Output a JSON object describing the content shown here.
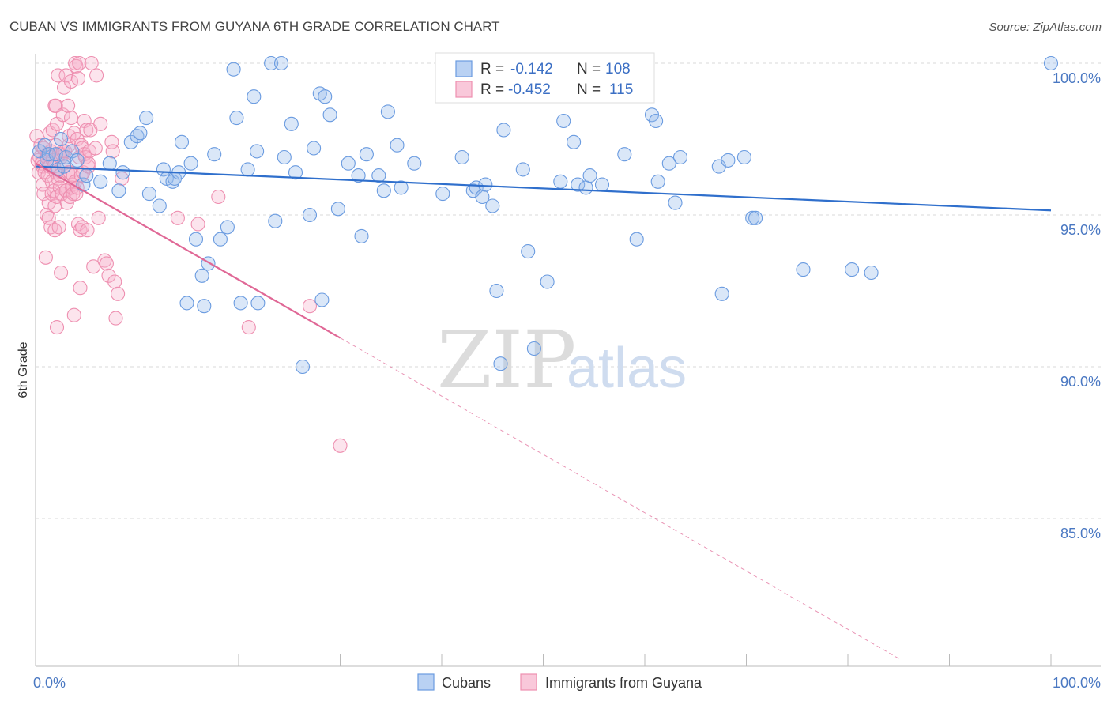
{
  "title": "CUBAN VS IMMIGRANTS FROM GUYANA 6TH GRADE CORRELATION CHART",
  "source": "Source: ZipAtlas.com",
  "watermark": {
    "zip": "ZIP",
    "atlas": "atlas"
  },
  "legend_top": {
    "r_label": "R =",
    "n_label": "N =",
    "rows": [
      {
        "r": "-0.142",
        "n": "108"
      },
      {
        "r": "-0.452",
        "n": "115"
      }
    ]
  },
  "legend_bottom": [
    "Cubans",
    "Immigrants from Guyana"
  ],
  "chart_data": {
    "type": "scatter",
    "title": "CUBAN VS IMMIGRANTS FROM GUYANA 6TH GRADE CORRELATION CHART",
    "xlabel": "",
    "ylabel": "6th Grade",
    "xlim": [
      0,
      100
    ],
    "ylim": [
      80.3,
      100.8
    ],
    "x_ticks": [
      "0.0%",
      "100.0%"
    ],
    "y_ticks": [
      {
        "value": 100,
        "label": "100.0%"
      },
      {
        "value": 95,
        "label": "95.0%"
      },
      {
        "value": 90,
        "label": "90.0%"
      },
      {
        "value": 85,
        "label": "85.0%"
      }
    ],
    "grid": true,
    "legend_position": "top-center",
    "colors": {
      "cubans": "#6a9be0",
      "guyana": "#ee8fb0",
      "cubans_line": "#2f6fcc",
      "guyana_line": "#e06896"
    },
    "series": [
      {
        "name": "Cubans",
        "r": -0.142,
        "n": 108,
        "trend": {
          "x": [
            0,
            100
          ],
          "y": [
            96.6,
            95.15
          ]
        },
        "points": [
          [
            0.4,
            97.1
          ],
          [
            0.9,
            97.3
          ],
          [
            1.1,
            96.8
          ],
          [
            1.3,
            97.0
          ],
          [
            2.0,
            97.0
          ],
          [
            2.2,
            96.5
          ],
          [
            2.5,
            97.5
          ],
          [
            2.8,
            96.6
          ],
          [
            3.0,
            96.9
          ],
          [
            3.6,
            97.1
          ],
          [
            4.1,
            96.8
          ],
          [
            4.7,
            96.0
          ],
          [
            5.0,
            96.3
          ],
          [
            6.4,
            96.1
          ],
          [
            7.3,
            96.7
          ],
          [
            8.2,
            95.8
          ],
          [
            8.6,
            96.4
          ],
          [
            9.4,
            97.4
          ],
          [
            10.0,
            97.6
          ],
          [
            10.3,
            97.7
          ],
          [
            10.9,
            98.2
          ],
          [
            11.2,
            95.7
          ],
          [
            12.2,
            95.3
          ],
          [
            12.6,
            96.5
          ],
          [
            12.9,
            96.2
          ],
          [
            13.5,
            96.1
          ],
          [
            13.7,
            96.2
          ],
          [
            14.1,
            96.4
          ],
          [
            14.4,
            97.4
          ],
          [
            14.9,
            92.1
          ],
          [
            15.3,
            96.7
          ],
          [
            15.8,
            94.2
          ],
          [
            16.4,
            93.0
          ],
          [
            16.6,
            92.0
          ],
          [
            17.0,
            93.4
          ],
          [
            17.6,
            97.0
          ],
          [
            18.2,
            94.2
          ],
          [
            18.9,
            94.6
          ],
          [
            19.5,
            99.8
          ],
          [
            19.8,
            98.2
          ],
          [
            20.2,
            92.1
          ],
          [
            20.9,
            96.5
          ],
          [
            21.5,
            98.9
          ],
          [
            21.8,
            97.1
          ],
          [
            21.9,
            92.1
          ],
          [
            23.2,
            100.0
          ],
          [
            23.6,
            94.8
          ],
          [
            24.2,
            100.0
          ],
          [
            24.5,
            96.9
          ],
          [
            25.2,
            98.0
          ],
          [
            25.6,
            96.4
          ],
          [
            26.3,
            90.0
          ],
          [
            27.0,
            95.0
          ],
          [
            27.4,
            97.2
          ],
          [
            28.0,
            99.0
          ],
          [
            28.2,
            92.2
          ],
          [
            28.5,
            98.9
          ],
          [
            29.0,
            98.3
          ],
          [
            29.8,
            95.2
          ],
          [
            30.8,
            96.7
          ],
          [
            31.8,
            96.3
          ],
          [
            32.1,
            94.3
          ],
          [
            32.6,
            97.0
          ],
          [
            33.8,
            96.3
          ],
          [
            34.3,
            95.8
          ],
          [
            34.7,
            98.4
          ],
          [
            35.6,
            97.3
          ],
          [
            36.0,
            95.9
          ],
          [
            37.3,
            96.7
          ],
          [
            40.1,
            95.7
          ],
          [
            42.0,
            96.9
          ],
          [
            43.1,
            95.8
          ],
          [
            43.4,
            95.9
          ],
          [
            44.0,
            95.6
          ],
          [
            44.3,
            96.0
          ],
          [
            45.0,
            95.3
          ],
          [
            45.4,
            92.5
          ],
          [
            45.8,
            90.1
          ],
          [
            46.1,
            97.8
          ],
          [
            48.0,
            96.5
          ],
          [
            48.5,
            93.8
          ],
          [
            49.1,
            90.6
          ],
          [
            50.4,
            92.8
          ],
          [
            51.7,
            96.1
          ],
          [
            52.0,
            98.1
          ],
          [
            53.0,
            97.4
          ],
          [
            53.4,
            96.0
          ],
          [
            54.2,
            95.9
          ],
          [
            54.6,
            96.3
          ],
          [
            55.8,
            96.0
          ],
          [
            58.0,
            97.0
          ],
          [
            59.2,
            94.2
          ],
          [
            60.7,
            98.3
          ],
          [
            61.1,
            98.1
          ],
          [
            61.3,
            96.1
          ],
          [
            62.4,
            96.7
          ],
          [
            63.0,
            95.4
          ],
          [
            63.5,
            96.9
          ],
          [
            67.3,
            96.6
          ],
          [
            67.6,
            92.4
          ],
          [
            68.2,
            96.8
          ],
          [
            69.8,
            96.9
          ],
          [
            70.6,
            94.9
          ],
          [
            70.9,
            94.9
          ],
          [
            75.6,
            93.2
          ],
          [
            80.4,
            93.2
          ],
          [
            82.3,
            93.1
          ],
          [
            100.0,
            100.0
          ]
        ]
      },
      {
        "name": "Immigrants from Guyana",
        "r": -0.452,
        "n": 115,
        "trend": {
          "x": [
            0,
            30
          ],
          "y": [
            96.7,
            90.95
          ]
        },
        "trend_extended": {
          "x": [
            30,
            85.2
          ],
          "y": [
            90.95,
            80.35
          ]
        },
        "points": [
          [
            0.1,
            97.6
          ],
          [
            0.2,
            96.8
          ],
          [
            0.3,
            96.4
          ],
          [
            0.4,
            96.9
          ],
          [
            0.5,
            97.3
          ],
          [
            0.6,
            96.7
          ],
          [
            0.7,
            96.0
          ],
          [
            0.7,
            96.6
          ],
          [
            0.8,
            95.7
          ],
          [
            0.8,
            97.2
          ],
          [
            0.9,
            96.4
          ],
          [
            1.0,
            93.6
          ],
          [
            1.1,
            96.9
          ],
          [
            1.1,
            95.0
          ],
          [
            1.2,
            97.0
          ],
          [
            1.2,
            96.3
          ],
          [
            1.3,
            94.9
          ],
          [
            1.3,
            95.4
          ],
          [
            1.4,
            96.6
          ],
          [
            1.4,
            97.7
          ],
          [
            1.5,
            97.1
          ],
          [
            1.5,
            94.6
          ],
          [
            1.6,
            96.1
          ],
          [
            1.6,
            95.7
          ],
          [
            1.7,
            96.8
          ],
          [
            1.7,
            97.8
          ],
          [
            1.8,
            95.8
          ],
          [
            1.8,
            96.6
          ],
          [
            1.9,
            98.6
          ],
          [
            1.9,
            95.3
          ],
          [
            1.9,
            94.5
          ],
          [
            2.0,
            96.4
          ],
          [
            2.0,
            97.3
          ],
          [
            2.0,
            98.6
          ],
          [
            2.1,
            98.0
          ],
          [
            2.1,
            95.6
          ],
          [
            2.1,
            91.3
          ],
          [
            2.2,
            96.2
          ],
          [
            2.2,
            99.6
          ],
          [
            2.3,
            97.0
          ],
          [
            2.3,
            94.6
          ],
          [
            2.4,
            96.3
          ],
          [
            2.4,
            95.9
          ],
          [
            2.5,
            96.9
          ],
          [
            2.5,
            93.1
          ],
          [
            2.6,
            97.0
          ],
          [
            2.6,
            95.7
          ],
          [
            2.7,
            97.1
          ],
          [
            2.7,
            98.3
          ],
          [
            2.8,
            96.7
          ],
          [
            2.8,
            99.2
          ],
          [
            2.9,
            97.1
          ],
          [
            3.0,
            95.8
          ],
          [
            3.0,
            99.6
          ],
          [
            3.0,
            95.8
          ],
          [
            3.1,
            95.4
          ],
          [
            3.2,
            96.4
          ],
          [
            3.2,
            98.6
          ],
          [
            3.3,
            97.3
          ],
          [
            3.3,
            97.6
          ],
          [
            3.4,
            95.6
          ],
          [
            3.4,
            96.4
          ],
          [
            3.5,
            99.4
          ],
          [
            3.5,
            98.2
          ],
          [
            3.6,
            96.0
          ],
          [
            3.6,
            95.9
          ],
          [
            3.7,
            96.3
          ],
          [
            3.7,
            95.7
          ],
          [
            3.8,
            97.7
          ],
          [
            3.8,
            91.7
          ],
          [
            3.9,
            100.0
          ],
          [
            3.9,
            96.1
          ],
          [
            4.0,
            99.9
          ],
          [
            4.0,
            95.7
          ],
          [
            4.1,
            97.5
          ],
          [
            4.1,
            95.9
          ],
          [
            4.2,
            99.5
          ],
          [
            4.2,
            94.7
          ],
          [
            4.3,
            96.9
          ],
          [
            4.3,
            100.0
          ],
          [
            4.4,
            94.5
          ],
          [
            4.4,
            92.6
          ],
          [
            4.5,
            97.3
          ],
          [
            4.5,
            96.3
          ],
          [
            4.6,
            97.2
          ],
          [
            4.6,
            94.6
          ],
          [
            4.7,
            96.4
          ],
          [
            4.8,
            97.0
          ],
          [
            4.8,
            98.1
          ],
          [
            4.9,
            96.9
          ],
          [
            5.0,
            97.8
          ],
          [
            5.1,
            94.5
          ],
          [
            5.2,
            96.6
          ],
          [
            5.2,
            96.7
          ],
          [
            5.3,
            97.1
          ],
          [
            5.4,
            97.8
          ],
          [
            5.5,
            100.0
          ],
          [
            5.7,
            93.3
          ],
          [
            5.9,
            97.2
          ],
          [
            6.0,
            99.6
          ],
          [
            6.2,
            94.9
          ],
          [
            6.4,
            98.0
          ],
          [
            6.8,
            93.5
          ],
          [
            7.0,
            93.4
          ],
          [
            7.2,
            93.0
          ],
          [
            7.5,
            97.4
          ],
          [
            7.6,
            97.1
          ],
          [
            7.8,
            92.8
          ],
          [
            7.9,
            91.6
          ],
          [
            8.1,
            92.4
          ],
          [
            8.5,
            96.2
          ],
          [
            14.0,
            94.9
          ],
          [
            16.0,
            94.7
          ],
          [
            18.0,
            95.6
          ],
          [
            21.0,
            91.3
          ],
          [
            27.0,
            92.0
          ],
          [
            30.0,
            87.4
          ]
        ]
      }
    ]
  }
}
